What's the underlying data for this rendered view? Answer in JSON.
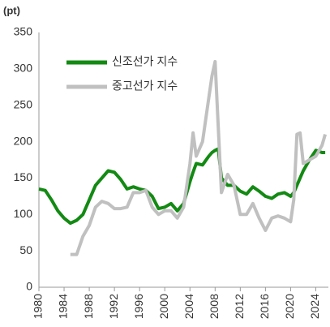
{
  "chart_data": {
    "type": "line",
    "y_label": "(pt)",
    "x": [
      1980,
      1981,
      1982,
      1983,
      1984,
      1985,
      1986,
      1987,
      1988,
      1989,
      1990,
      1991,
      1992,
      1993,
      1994,
      1995,
      1996,
      1997,
      1998,
      1999,
      2000,
      2001,
      2002,
      2003,
      2004,
      2004.5,
      2005,
      2006,
      2007,
      2007.5,
      2008,
      2008.5,
      2009,
      2010,
      2011,
      2012,
      2013,
      2014,
      2015,
      2016,
      2017,
      2018,
      2019,
      2020,
      2020.5,
      2021,
      2021.5,
      2022,
      2023,
      2024,
      2025,
      2025.5
    ],
    "series": [
      {
        "name": "신조선가 지수",
        "color": "#138a13",
        "values": [
          135,
          133,
          120,
          105,
          95,
          88,
          92,
          100,
          120,
          140,
          150,
          160,
          158,
          148,
          135,
          138,
          135,
          133,
          125,
          108,
          110,
          115,
          105,
          115,
          145,
          158,
          170,
          168,
          180,
          185,
          188,
          190,
          150,
          140,
          140,
          132,
          128,
          138,
          132,
          125,
          122,
          128,
          130,
          125,
          130,
          140,
          150,
          160,
          175,
          188,
          185,
          185
        ]
      },
      {
        "name": "중고선가 지수",
        "color": "#c0c0c0",
        "values": [
          null,
          null,
          null,
          null,
          null,
          45,
          45,
          70,
          85,
          110,
          118,
          115,
          108,
          108,
          110,
          130,
          130,
          133,
          110,
          100,
          105,
          105,
          95,
          110,
          170,
          212,
          180,
          200,
          260,
          290,
          310,
          220,
          130,
          155,
          140,
          100,
          100,
          115,
          95,
          78,
          95,
          98,
          95,
          90,
          120,
          210,
          212,
          170,
          175,
          180,
          195,
          210
        ]
      }
    ],
    "xlim": [
      1980,
      2026
    ],
    "xticks": [
      1980,
      1984,
      1988,
      1992,
      1996,
      2000,
      2004,
      2008,
      2012,
      2016,
      2020,
      2024
    ],
    "ylim": [
      0,
      350
    ],
    "yticks": [
      0,
      50,
      100,
      150,
      200,
      250,
      300,
      350
    ],
    "grid": false,
    "legend": "top-left"
  }
}
